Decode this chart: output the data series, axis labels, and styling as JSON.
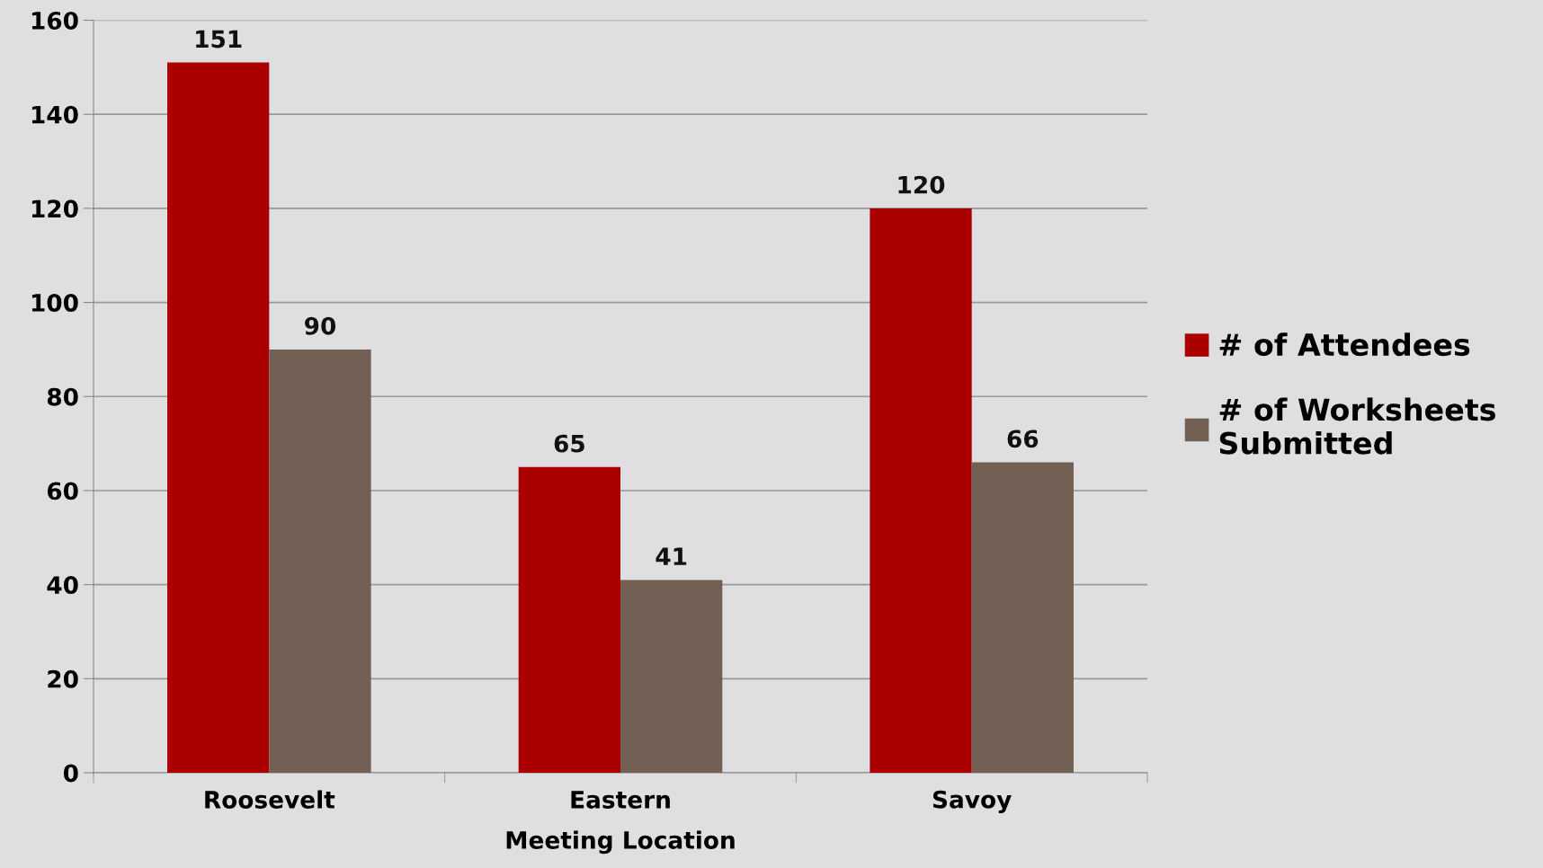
{
  "chart_data": {
    "type": "bar",
    "xlabel": "Meeting Location",
    "categories": [
      "Roosevelt",
      "Eastern",
      "Savoy"
    ],
    "series": [
      {
        "name": "# of Attendees",
        "color": "#aa0000",
        "values": [
          151,
          65,
          120
        ]
      },
      {
        "name": "# of Worksheets\nSubmitted",
        "color": "#736055",
        "values": [
          90,
          41,
          66
        ]
      }
    ],
    "ylim": [
      0,
      160
    ],
    "yticks": [
      0,
      20,
      40,
      60,
      80,
      100,
      120,
      140,
      160
    ],
    "grid": "y",
    "legend": "right",
    "data_labels": true
  }
}
